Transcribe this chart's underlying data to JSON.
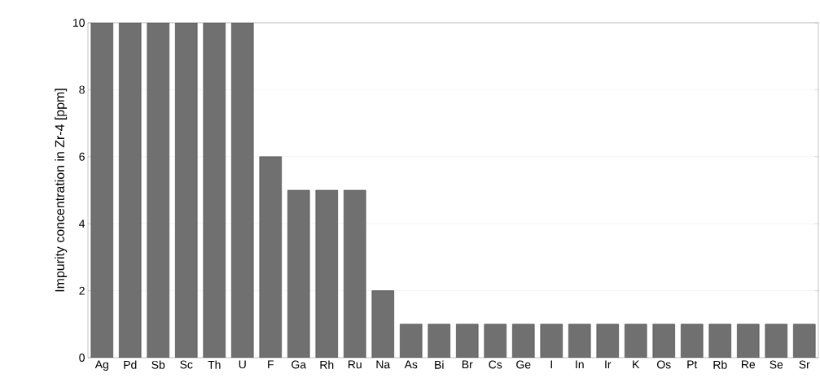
{
  "chart_data": {
    "type": "bar",
    "ylabel": "Impurity concentration in Zr-4 [ppm]",
    "categories": [
      "Ag",
      "Pd",
      "Sb",
      "Sc",
      "Th",
      "U",
      "F",
      "Ga",
      "Rh",
      "Ru",
      "Na",
      "As",
      "Bi",
      "Br",
      "Cs",
      "Ge",
      "I",
      "In",
      "Ir",
      "K",
      "Os",
      "Pt",
      "Rb",
      "Re",
      "Se",
      "Sr"
    ],
    "values": [
      10,
      10,
      10,
      10,
      10,
      10,
      6,
      5,
      5,
      5,
      2,
      1,
      1,
      1,
      1,
      1,
      1,
      1,
      1,
      1,
      1,
      1,
      1,
      1,
      1,
      1
    ],
    "color": "#707070",
    "ylim": [
      0,
      10
    ],
    "yticks": [
      0,
      2,
      4,
      6,
      8,
      10
    ],
    "grid": "y"
  }
}
